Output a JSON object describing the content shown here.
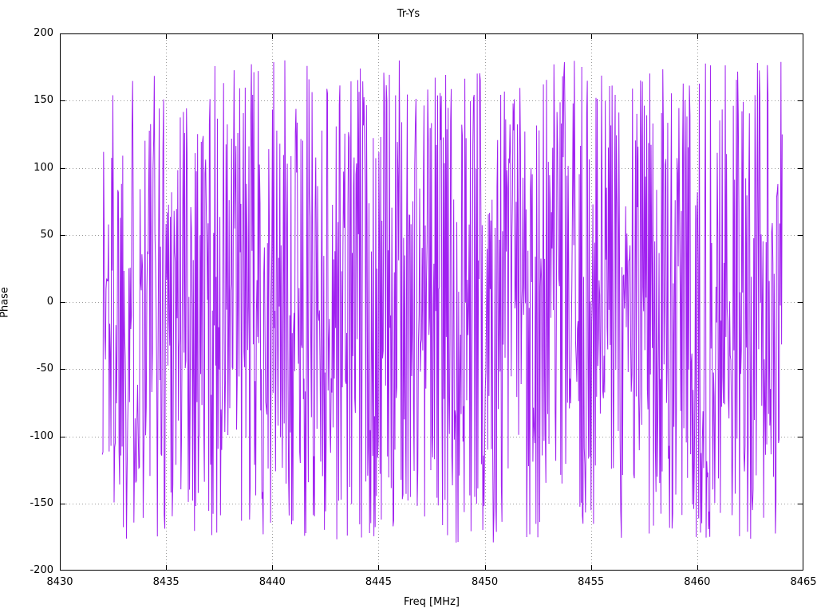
{
  "chart_data": {
    "type": "line",
    "title": "Tr-Ys",
    "xlabel": "Freq [MHz]",
    "ylabel": "Phase",
    "xlim": [
      8430,
      8465
    ],
    "ylim": [
      -200,
      200
    ],
    "xticks": [
      8430,
      8435,
      8440,
      8445,
      8450,
      8455,
      8460,
      8465
    ],
    "yticks": [
      -200,
      -150,
      -100,
      -50,
      0,
      50,
      100,
      150,
      200
    ],
    "grid": true,
    "grid_style": "dotted",
    "grid_color": "#9a9a9a",
    "border_color": "#000000",
    "legend_position": "none",
    "series": [
      {
        "name": "Tr-Ys",
        "color": "#a020f0",
        "line_width": 1,
        "x_start": 8432.0,
        "x_end": 8464.0,
        "n_points": 1100,
        "seed": 1337,
        "y_min": -180,
        "y_max": 180,
        "generation": "wrapped interferometric phase noise; samples uniformly distributed across [-180, 180] degrees over the full frequency span"
      }
    ]
  }
}
